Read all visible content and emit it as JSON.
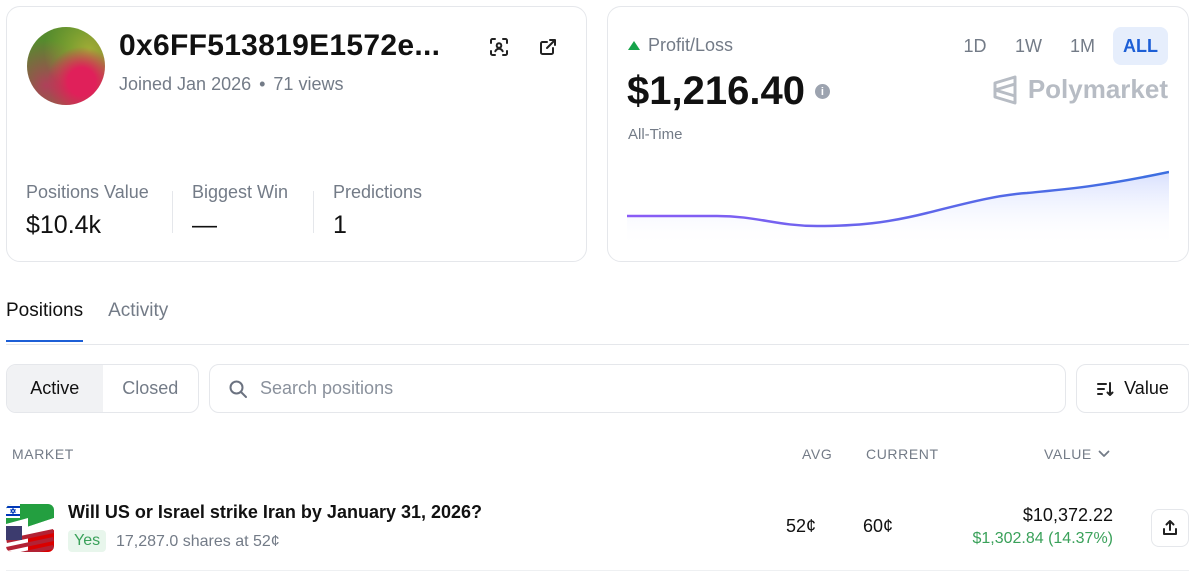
{
  "profile": {
    "address": "0x6FF513819E1572e...",
    "joined": "Joined Jan 2026",
    "separator": "•",
    "views": "71 views",
    "stats": [
      {
        "label": "Positions Value",
        "value": "$10.4k"
      },
      {
        "label": "Biggest Win",
        "value": "—"
      },
      {
        "label": "Predictions",
        "value": "1"
      }
    ]
  },
  "pnl": {
    "label": "Profit/Loss",
    "value": "$1,216.40",
    "info_glyph": "i",
    "period": "All-Time",
    "brand": "Polymarket",
    "ranges": [
      "1D",
      "1W",
      "1M",
      "ALL"
    ],
    "active_range": "ALL",
    "trend_color": "#16a34a",
    "line_gradient": [
      "#8b5cf6",
      "#3b6fe0"
    ]
  },
  "tabs": [
    "Positions",
    "Activity"
  ],
  "active_tab": "Positions",
  "filter": {
    "segments": [
      "Active",
      "Closed"
    ],
    "active_segment": "Active",
    "search_placeholder": "Search positions",
    "sort_label": "Value"
  },
  "table": {
    "headers": {
      "market": "MARKET",
      "avg": "AVG",
      "current": "CURRENT",
      "value": "VALUE"
    },
    "rows": [
      {
        "title": "Will US or Israel strike Iran by January 31, 2026?",
        "outcome": "Yes",
        "shares": "17,287.0 shares at 52¢",
        "avg": "52¢",
        "current": "60¢",
        "value": "$10,372.22",
        "pnl": "$1,302.84 (14.37%)"
      }
    ]
  },
  "icons": {
    "scan": "scan-icon",
    "external": "external-link-icon",
    "search": "search-icon",
    "sort": "sort-icon",
    "share": "share-icon",
    "chevron": "chevron-down-icon"
  },
  "colors": {
    "accent": "#1d5fd6",
    "positive": "#3aa15a",
    "muted": "#737b87"
  }
}
